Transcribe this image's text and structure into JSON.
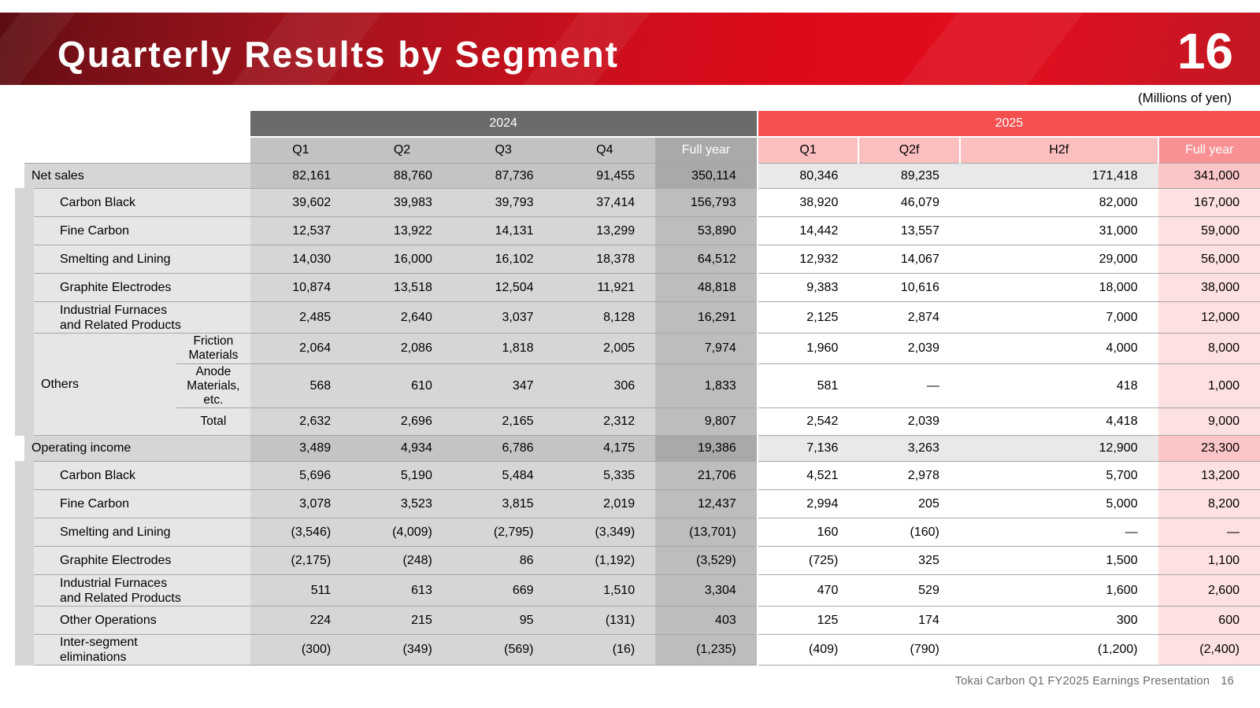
{
  "header": {
    "title": "Quarterly Results by Segment",
    "page_number": "16"
  },
  "units": "(Millions of yen)",
  "columns": {
    "year_2024": "2024",
    "year_2025": "2025",
    "h2024": [
      "Q1",
      "Q2",
      "Q3",
      "Q4",
      "Full year"
    ],
    "h2025": [
      "Q1",
      "Q2f",
      "H2f",
      "Full year"
    ]
  },
  "rows": {
    "net_sales": {
      "label": "Net sales",
      "v": [
        "82,161",
        "88,760",
        "87,736",
        "91,455",
        "350,114",
        "80,346",
        "89,235",
        "171,418",
        "341,000"
      ]
    },
    "ns_carbon_black": {
      "label": "Carbon Black",
      "v": [
        "39,602",
        "39,983",
        "39,793",
        "37,414",
        "156,793",
        "38,920",
        "46,079",
        "82,000",
        "167,000"
      ]
    },
    "ns_fine_carbon": {
      "label": "Fine Carbon",
      "v": [
        "12,537",
        "13,922",
        "14,131",
        "13,299",
        "53,890",
        "14,442",
        "13,557",
        "31,000",
        "59,000"
      ]
    },
    "ns_smelting": {
      "label": "Smelting and Lining",
      "v": [
        "14,030",
        "16,000",
        "16,102",
        "18,378",
        "64,512",
        "12,932",
        "14,067",
        "29,000",
        "56,000"
      ]
    },
    "ns_graphite": {
      "label": "Graphite Electrodes",
      "v": [
        "10,874",
        "13,518",
        "12,504",
        "11,921",
        "48,818",
        "9,383",
        "10,616",
        "18,000",
        "38,000"
      ]
    },
    "ns_furnaces": {
      "label_line1": "Industrial Furnaces",
      "label_line2": "and Related Products",
      "v": [
        "2,485",
        "2,640",
        "3,037",
        "8,128",
        "16,291",
        "2,125",
        "2,874",
        "7,000",
        "12,000"
      ]
    },
    "others_label": "Others",
    "ns_friction": {
      "label_line1": "Friction",
      "label_line2": "Materials",
      "v": [
        "2,064",
        "2,086",
        "1,818",
        "2,005",
        "7,974",
        "1,960",
        "2,039",
        "4,000",
        "8,000"
      ]
    },
    "ns_anode": {
      "label_line1": "Anode",
      "label_line2": "Materials,",
      "label_line3": "etc.",
      "v": [
        "568",
        "610",
        "347",
        "306",
        "1,833",
        "581",
        "—",
        "418",
        "1,000"
      ]
    },
    "ns_total": {
      "label": "Total",
      "v": [
        "2,632",
        "2,696",
        "2,165",
        "2,312",
        "9,807",
        "2,542",
        "2,039",
        "4,418",
        "9,000"
      ]
    },
    "op_income": {
      "label": "Operating income",
      "v": [
        "3,489",
        "4,934",
        "6,786",
        "4,175",
        "19,386",
        "7,136",
        "3,263",
        "12,900",
        "23,300"
      ]
    },
    "oi_carbon_black": {
      "label": "Carbon Black",
      "v": [
        "5,696",
        "5,190",
        "5,484",
        "5,335",
        "21,706",
        "4,521",
        "2,978",
        "5,700",
        "13,200"
      ]
    },
    "oi_fine_carbon": {
      "label": "Fine Carbon",
      "v": [
        "3,078",
        "3,523",
        "3,815",
        "2,019",
        "12,437",
        "2,994",
        "205",
        "5,000",
        "8,200"
      ]
    },
    "oi_smelting": {
      "label": "Smelting and Lining",
      "v": [
        "(3,546)",
        "(4,009)",
        "(2,795)",
        "(3,349)",
        "(13,701)",
        "160",
        "(160)",
        "—",
        "—"
      ]
    },
    "oi_graphite": {
      "label": "Graphite Electrodes",
      "v": [
        "(2,175)",
        "(248)",
        "86",
        "(1,192)",
        "(3,529)",
        "(725)",
        "325",
        "1,500",
        "1,100"
      ]
    },
    "oi_furnaces": {
      "label_line1": "Industrial Furnaces",
      "label_line2": "and Related Products",
      "v": [
        "511",
        "613",
        "669",
        "1,510",
        "3,304",
        "470",
        "529",
        "1,600",
        "2,600"
      ]
    },
    "oi_other": {
      "label": "Other Operations",
      "v": [
        "224",
        "215",
        "95",
        "(131)",
        "403",
        "125",
        "174",
        "300",
        "600"
      ]
    },
    "oi_elim": {
      "label_line1": "Inter-segment",
      "label_line2": "eliminations",
      "v": [
        "(300)",
        "(349)",
        "(569)",
        "(16)",
        "(1,235)",
        "(409)",
        "(790)",
        "(1,200)",
        "(2,400)"
      ]
    }
  },
  "footer": {
    "text": "Tokai Carbon Q1 FY2025 Earnings Presentation",
    "page": "16"
  }
}
